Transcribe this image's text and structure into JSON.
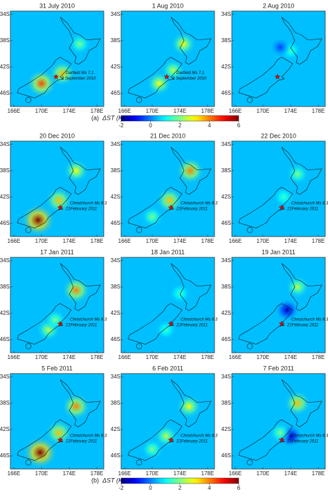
{
  "figure": {
    "colormap": "jet",
    "axes": {
      "lon_lim": [
        165.5,
        179
      ],
      "lat_lim": [
        -33.5,
        -48
      ],
      "x_ticks": [
        {
          "value": 166,
          "label": "166E"
        },
        {
          "value": 170,
          "label": "170E"
        },
        {
          "value": 174,
          "label": "174E"
        },
        {
          "value": 178,
          "label": "178E"
        }
      ],
      "y_ticks": [
        {
          "value": -34,
          "label": "34S"
        },
        {
          "value": -38,
          "label": "38S"
        },
        {
          "value": -42,
          "label": "42S"
        },
        {
          "value": -46,
          "label": "46S"
        }
      ]
    },
    "groups": [
      {
        "letter": "(a)",
        "colorbar": {
          "label": "ΔST (K)",
          "lim": [
            -2,
            6
          ],
          "ticks": [
            -2,
            0,
            2,
            4,
            6
          ]
        },
        "epicenter": {
          "lon": 172.1,
          "lat": -43.5
        },
        "panels": [
          {
            "title": "31 July 2010",
            "annotation": [
              "Darfield Ms 7.1",
              "3 September 2010"
            ],
            "base": 0.5,
            "anomalies": [
              {
                "lon": 170,
                "lat": -44.5,
                "value": 4.5
              },
              {
                "lon": 173,
                "lat": -43,
                "value": 3.5
              },
              {
                "lon": 175.5,
                "lat": -38.5,
                "value": 2
              }
            ]
          },
          {
            "title": "1 Aug 2010",
            "annotation": [
              "Darfield Ms 7.1",
              "3 September 2010"
            ],
            "base": 0.5,
            "anomalies": [
              {
                "lon": 174.5,
                "lat": -38.5,
                "value": 3
              },
              {
                "lon": 171,
                "lat": -44.5,
                "value": 3
              },
              {
                "lon": 173,
                "lat": -42.5,
                "value": 2.5
              }
            ]
          },
          {
            "title": "2 Aug 2010",
            "annotation": [],
            "base": 0.5,
            "anomalies": [
              {
                "lon": 174,
                "lat": -39.5,
                "value": 1.5
              },
              {
                "lon": 172.5,
                "lat": -39,
                "value": -0.5
              }
            ]
          }
        ]
      },
      {
        "letter": "(b)",
        "colorbar": {
          "label": "ΔST (K)",
          "lim": [
            -2,
            6
          ],
          "ticks": [
            -2,
            0,
            2,
            4,
            6
          ]
        },
        "epicenter": {
          "lon": 172.7,
          "lat": -43.6
        },
        "panels": [
          {
            "title": "20 Dec 2010",
            "annotation": [
              "Christchurch Ms 6.3",
              "21February 2011"
            ],
            "base": 0.5,
            "anomalies": [
              {
                "lon": 169.5,
                "lat": -45.5,
                "value": 6
              },
              {
                "lon": 172.5,
                "lat": -42.5,
                "value": 3.5
              },
              {
                "lon": 175,
                "lat": -38,
                "value": 3
              }
            ]
          },
          {
            "title": "21 Dec 2010",
            "annotation": [
              "Christchurch Ms 6.3",
              "21February 2011"
            ],
            "base": 0.5,
            "anomalies": [
              {
                "lon": 175.5,
                "lat": -38,
                "value": 4
              },
              {
                "lon": 172.5,
                "lat": -42.5,
                "value": 3.5
              },
              {
                "lon": 170,
                "lat": -45,
                "value": 2
              }
            ]
          },
          {
            "title": "22 Dec 2010",
            "annotation": [
              "Christchurch Ms 6.3",
              "21February 2011"
            ],
            "base": 0.5,
            "anomalies": [
              {
                "lon": 175,
                "lat": -38.5,
                "value": 2
              },
              {
                "lon": 173,
                "lat": -42,
                "value": 1.5
              }
            ]
          },
          {
            "title": "17 Jan 2011",
            "annotation": [
              "Christchurch Ms 6.3",
              "21February 2011"
            ],
            "base": 0.5,
            "anomalies": [
              {
                "lon": 175,
                "lat": -38.5,
                "value": 4
              },
              {
                "lon": 171,
                "lat": -44.5,
                "value": 2.5
              },
              {
                "lon": 172,
                "lat": -43,
                "value": 2
              }
            ]
          },
          {
            "title": "18 Jan 2011",
            "annotation": [
              "Christchurch Ms 6.3",
              "21February 2011"
            ],
            "base": 0.5,
            "anomalies": [
              {
                "lon": 174,
                "lat": -39,
                "value": 1.5
              },
              {
                "lon": 172,
                "lat": -44.5,
                "value": 1.5
              }
            ]
          },
          {
            "title": "19 Jan 2011",
            "annotation": [
              "Christchurch Ms 6.3",
              "21February 2011"
            ],
            "base": 0.5,
            "anomalies": [
              {
                "lon": 175,
                "lat": -38,
                "value": 2.5
              },
              {
                "lon": 173.5,
                "lat": -41.5,
                "value": -1.5
              }
            ]
          },
          {
            "title": "5 Feb 2011",
            "annotation": [
              "Christchurch Ms 6.3",
              "21February 2011"
            ],
            "base": 0.5,
            "anomalies": [
              {
                "lon": 169.8,
                "lat": -45.5,
                "value": 6
              },
              {
                "lon": 175,
                "lat": -38.5,
                "value": 4
              },
              {
                "lon": 172.5,
                "lat": -42.5,
                "value": 3.5
              }
            ]
          },
          {
            "title": "6 Feb 2011",
            "annotation": [
              "Christchurch Ms 6.3",
              "21February 2011"
            ],
            "base": 0.5,
            "anomalies": [
              {
                "lon": 175.3,
                "lat": -38.5,
                "value": 3
              },
              {
                "lon": 172,
                "lat": -43,
                "value": 2.5
              },
              {
                "lon": 170,
                "lat": -45,
                "value": 2
              }
            ]
          },
          {
            "title": "7 Feb 2011",
            "annotation": [
              "Christchurch Ms 6.3",
              "21February 2011"
            ],
            "base": 0.5,
            "anomalies": [
              {
                "lon": 175,
                "lat": -38,
                "value": 3.5
              },
              {
                "lon": 174,
                "lat": -43,
                "value": -1.5
              },
              {
                "lon": 172.5,
                "lat": -42.5,
                "value": 2
              }
            ]
          }
        ]
      }
    ]
  }
}
